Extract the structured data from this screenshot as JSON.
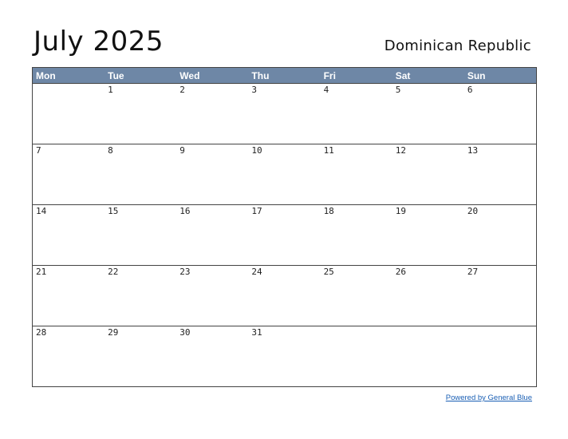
{
  "header": {
    "title": "July 2025",
    "country": "Dominican Republic"
  },
  "calendar": {
    "weekdays": [
      "Mon",
      "Tue",
      "Wed",
      "Thu",
      "Fri",
      "Sat",
      "Sun"
    ],
    "weeks": [
      [
        "",
        "1",
        "2",
        "3",
        "4",
        "5",
        "6"
      ],
      [
        "7",
        "8",
        "9",
        "10",
        "11",
        "12",
        "13"
      ],
      [
        "14",
        "15",
        "16",
        "17",
        "18",
        "19",
        "20"
      ],
      [
        "21",
        "22",
        "23",
        "24",
        "25",
        "26",
        "27"
      ],
      [
        "28",
        "29",
        "30",
        "31",
        "",
        "",
        ""
      ]
    ]
  },
  "footer": {
    "link_text": "Powered by General Blue"
  },
  "colors": {
    "header_bg": "#6e87a6",
    "header_text": "#ffffff",
    "link": "#1a5fb4"
  }
}
